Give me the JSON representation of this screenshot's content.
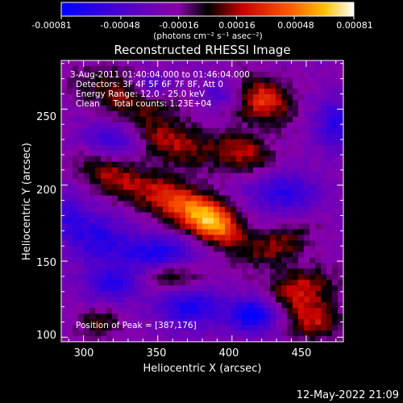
{
  "chart_data": {
    "type": "heatmap",
    "title": "Reconstructed RHESSI Image",
    "xlabel": "Heliocentric X (arcsec)",
    "ylabel": "Heliocentric Y (arcsec)",
    "xlim": [
      285,
      475
    ],
    "ylim": [
      97,
      282
    ],
    "x_ticks": [
      "300",
      "350",
      "400",
      "450"
    ],
    "y_ticks": [
      "100",
      "150",
      "200",
      "250"
    ],
    "colorbar": {
      "range": [
        -0.00081,
        0.00081
      ],
      "tick_labels": [
        "-0.00081",
        "-0.00048",
        "-0.00016",
        "0.00016",
        "0.00048",
        "0.00081"
      ],
      "units": "(photons cm⁻² s⁻¹ asec⁻²)"
    },
    "annotations": {
      "time_range": "3-Aug-2011 01:40:04.000 to 01:46:04.000",
      "detectors": "Detectors: 3F 4F 5F 6F 7F 8F, Att 0",
      "energy": "Energy Range: 12.0 - 25.0 keV",
      "clean": "Clean     Total counts: 1.23E+04",
      "peak": "Position of Peak = [387,176]"
    },
    "peak": {
      "x": 387,
      "y": 176
    },
    "timestamp": "12-May-2022 21:09",
    "blobs": [
      {
        "x": 387,
        "y": 176,
        "sx": 15,
        "sy": 9,
        "v": 0.00081,
        "rot": -30
      },
      {
        "x": 360,
        "y": 190,
        "sx": 18,
        "sy": 10,
        "v": 0.00045,
        "rot": -30
      },
      {
        "x": 320,
        "y": 205,
        "sx": 18,
        "sy": 9,
        "v": 0.00038,
        "rot": -25
      },
      {
        "x": 360,
        "y": 228,
        "sx": 22,
        "sy": 9,
        "v": 0.0004,
        "rot": -20
      },
      {
        "x": 408,
        "y": 222,
        "sx": 14,
        "sy": 8,
        "v": 0.0004,
        "rot": -20
      },
      {
        "x": 420,
        "y": 256,
        "sx": 14,
        "sy": 10,
        "v": 0.00055,
        "rot": -20
      },
      {
        "x": 330,
        "y": 260,
        "sx": 24,
        "sy": 10,
        "v": 0.00035,
        "rot": -15
      },
      {
        "x": 360,
        "y": 140,
        "sx": 14,
        "sy": 7,
        "v": 0.00034,
        "rot": 0
      },
      {
        "x": 430,
        "y": 160,
        "sx": 16,
        "sy": 8,
        "v": 0.00035,
        "rot": 20
      },
      {
        "x": 445,
        "y": 130,
        "sx": 16,
        "sy": 10,
        "v": 0.00045,
        "rot": 10
      },
      {
        "x": 455,
        "y": 110,
        "sx": 12,
        "sy": 8,
        "v": 0.0004,
        "rot": 0
      },
      {
        "x": 310,
        "y": 110,
        "sx": 10,
        "sy": 6,
        "v": 0.00028,
        "rot": 0
      },
      {
        "x": 345,
        "y": 265,
        "sx": 10,
        "sy": 6,
        "v": -0.0004,
        "rot": 0
      },
      {
        "x": 320,
        "y": 230,
        "sx": 14,
        "sy": 8,
        "v": -0.00035,
        "rot": 0
      },
      {
        "x": 350,
        "y": 155,
        "sx": 18,
        "sy": 8,
        "v": -0.0005,
        "rot": 0
      },
      {
        "x": 310,
        "y": 165,
        "sx": 14,
        "sy": 12,
        "v": -0.0004,
        "rot": 0
      },
      {
        "x": 320,
        "y": 135,
        "sx": 14,
        "sy": 8,
        "v": -0.0004,
        "rot": 0
      },
      {
        "x": 372,
        "y": 120,
        "sx": 16,
        "sy": 10,
        "v": -0.00045,
        "rot": 0
      },
      {
        "x": 415,
        "y": 115,
        "sx": 12,
        "sy": 8,
        "v": -0.0006,
        "rot": 0
      },
      {
        "x": 435,
        "y": 195,
        "sx": 16,
        "sy": 10,
        "v": -0.0004,
        "rot": 0
      },
      {
        "x": 470,
        "y": 240,
        "sx": 10,
        "sy": 12,
        "v": -0.0004,
        "rot": 0
      },
      {
        "x": 395,
        "y": 260,
        "sx": 12,
        "sy": 6,
        "v": -0.0003,
        "rot": 0
      },
      {
        "x": 290,
        "y": 180,
        "sx": 8,
        "sy": 12,
        "v": -0.0003,
        "rot": 0
      }
    ]
  }
}
